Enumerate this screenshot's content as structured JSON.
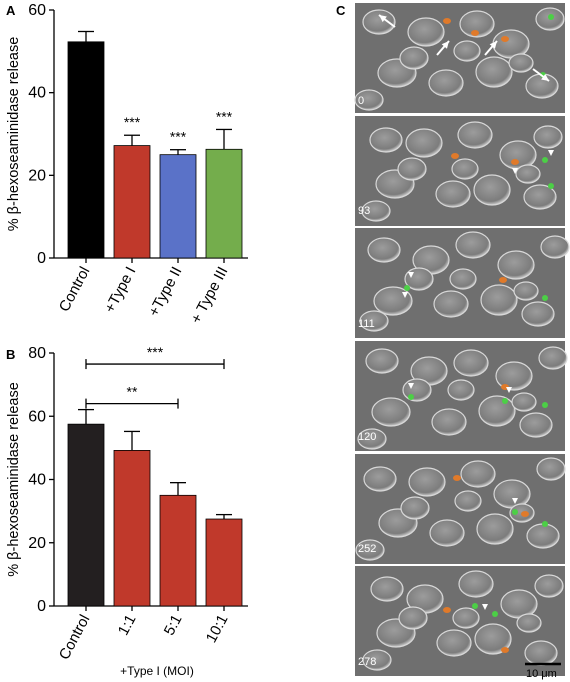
{
  "panels": {
    "a": {
      "letter": "A"
    },
    "b": {
      "letter": "B"
    },
    "c": {
      "letter": "C"
    }
  },
  "chart_data": [
    {
      "type": "bar",
      "panel": "A",
      "ylabel": "% β-hexoseaminidase release",
      "xlabel": "",
      "ylim": [
        0,
        60
      ],
      "yticks": [
        0,
        20,
        40,
        60
      ],
      "categories": [
        "Control",
        "+Type I",
        "+Type II",
        "+ Type III"
      ],
      "values": [
        52.3,
        27.2,
        25.0,
        26.3
      ],
      "errors": [
        2.5,
        2.5,
        1.2,
        4.8
      ],
      "colors": [
        "#000000",
        "#c0392b",
        "#5a72c8",
        "#74ad4c"
      ],
      "annotations": [
        "",
        "***",
        "***",
        "***"
      ]
    },
    {
      "type": "bar",
      "panel": "B",
      "ylabel": "% β-hexoseaminidase release",
      "xlabel": "+Type I (MOI)",
      "ylim": [
        0,
        80
      ],
      "yticks": [
        0,
        20,
        40,
        60,
        80
      ],
      "categories": [
        "Control",
        "1:1",
        "5:1",
        "10:1"
      ],
      "values": [
        57.5,
        49.2,
        35.0,
        27.5
      ],
      "errors": [
        4.6,
        6.0,
        4.0,
        1.4
      ],
      "colors": [
        "#231f20",
        "#c0392b",
        "#c0392b",
        "#c0392b"
      ],
      "brackets": [
        {
          "from": "Control",
          "to": "10:1",
          "label": "***"
        },
        {
          "from": "Control",
          "to": "5:1",
          "label": "**"
        }
      ]
    }
  ],
  "microscopy": {
    "frames": [
      "0",
      "93",
      "111",
      "120",
      "252",
      "278"
    ],
    "scale_bar": "10 μm"
  }
}
